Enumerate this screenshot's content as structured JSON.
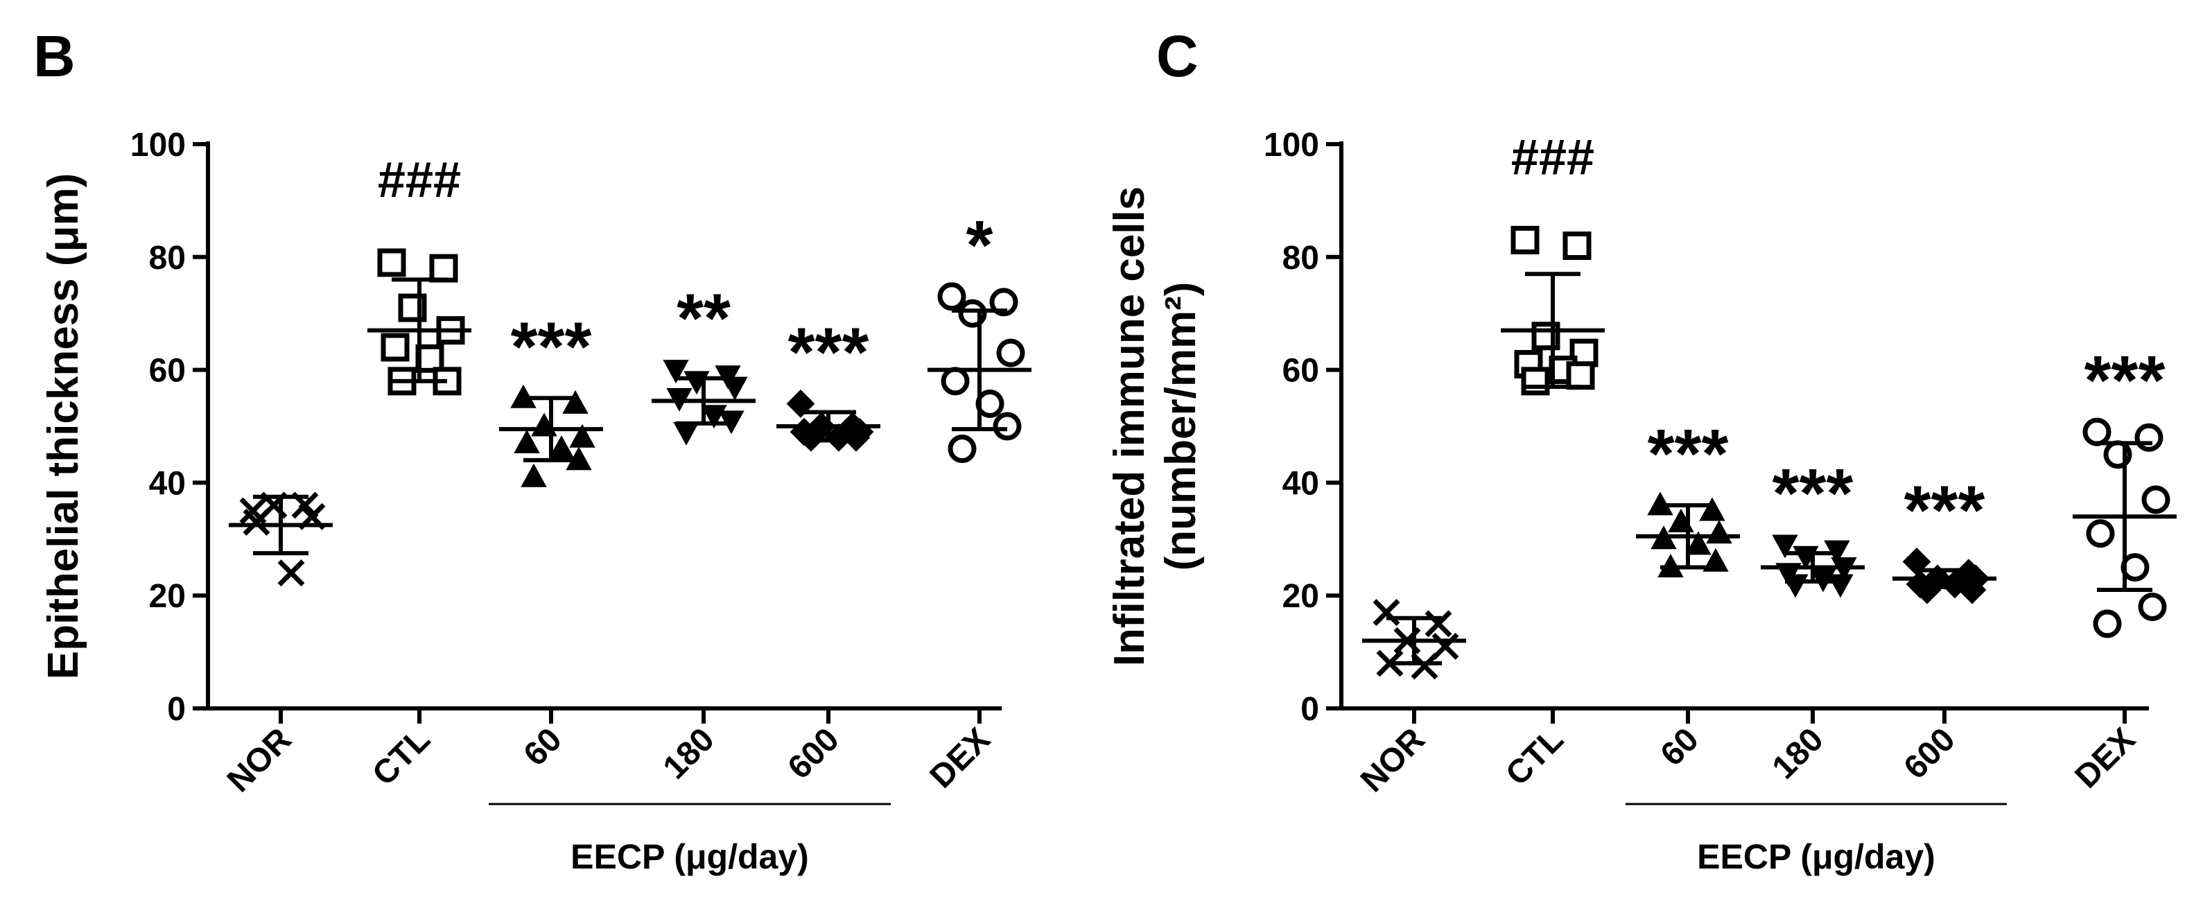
{
  "chart_data": [
    {
      "panel_label": "B",
      "type": "scatter",
      "ylabel": "Epithelial thickness (μm)",
      "ylabel_lines": [
        "Epithelial thickness (μm)"
      ],
      "xlabel": "EECP (μg/day)",
      "ylim": [
        0,
        100
      ],
      "yticks": [
        "0",
        "20",
        "40",
        "60",
        "80",
        "100"
      ],
      "categories": [
        "NOR",
        "CTL",
        "60",
        "180",
        "600",
        "DEX"
      ],
      "eecp_group": [
        "60",
        "180",
        "600"
      ],
      "groups": [
        {
          "name": "NOR",
          "marker": "x",
          "mean": 32.5,
          "sd": 5,
          "points": [
            35,
            36,
            36,
            34,
            33,
            24
          ],
          "sig": ""
        },
        {
          "name": "CTL",
          "marker": "square",
          "mean": 67,
          "sd": 9,
          "points": [
            79,
            78,
            71,
            67,
            64,
            62,
            58,
            58
          ],
          "sig": "###"
        },
        {
          "name": "60",
          "marker": "triangle-up",
          "mean": 49.5,
          "sd": 5.5,
          "points": [
            55,
            54,
            50,
            48,
            47,
            46,
            44,
            41
          ],
          "sig": "***"
        },
        {
          "name": "180",
          "marker": "triangle-down",
          "mean": 54.5,
          "sd": 4,
          "points": [
            60,
            59,
            58,
            57,
            55,
            52,
            51,
            49
          ],
          "sig": "**"
        },
        {
          "name": "600",
          "marker": "diamond",
          "mean": 50,
          "sd": 2.5,
          "points": [
            54,
            50,
            50,
            49,
            49,
            48,
            48,
            48
          ],
          "sig": "***"
        },
        {
          "name": "DEX",
          "marker": "circle",
          "mean": 60,
          "sd": 10.5,
          "points": [
            73,
            72,
            70,
            63,
            58,
            54,
            50,
            46
          ],
          "sig": "*"
        }
      ]
    },
    {
      "panel_label": "C",
      "type": "scatter",
      "ylabel": "Infiltrated immune cells (number/mm2)",
      "ylabel_lines": [
        "Infiltrated immune cells",
        "(number/mm²)"
      ],
      "xlabel": "EECP (μg/day)",
      "ylim": [
        0,
        100
      ],
      "yticks": [
        "0",
        "20",
        "40",
        "60",
        "80",
        "100"
      ],
      "categories": [
        "NOR",
        "CTL",
        "60",
        "180",
        "600",
        "DEX"
      ],
      "eecp_group": [
        "60",
        "180",
        "600"
      ],
      "groups": [
        {
          "name": "NOR",
          "marker": "x",
          "mean": 12,
          "sd": 4,
          "points": [
            17,
            15,
            12,
            11,
            8,
            7.5
          ],
          "sig": ""
        },
        {
          "name": "CTL",
          "marker": "square",
          "mean": 67,
          "sd": 10,
          "points": [
            83,
            82,
            66,
            63,
            61,
            60,
            59,
            58
          ],
          "sig": "###"
        },
        {
          "name": "60",
          "marker": "triangle-up",
          "mean": 30.5,
          "sd": 5.5,
          "points": [
            36,
            35,
            33,
            31,
            30,
            29,
            26,
            25
          ],
          "sig": "***"
        },
        {
          "name": "180",
          "marker": "triangle-down",
          "mean": 25,
          "sd": 2.5,
          "points": [
            29,
            28,
            27,
            25,
            24,
            23,
            22,
            22
          ],
          "sig": "***"
        },
        {
          "name": "600",
          "marker": "diamond",
          "mean": 23,
          "sd": 1.5,
          "points": [
            26,
            24,
            23,
            23,
            22,
            22,
            21,
            21
          ],
          "sig": "***"
        },
        {
          "name": "DEX",
          "marker": "circle",
          "mean": 34,
          "sd": 13,
          "points": [
            49,
            48,
            45,
            37,
            31,
            25,
            18,
            15
          ],
          "sig": "***"
        }
      ]
    }
  ]
}
